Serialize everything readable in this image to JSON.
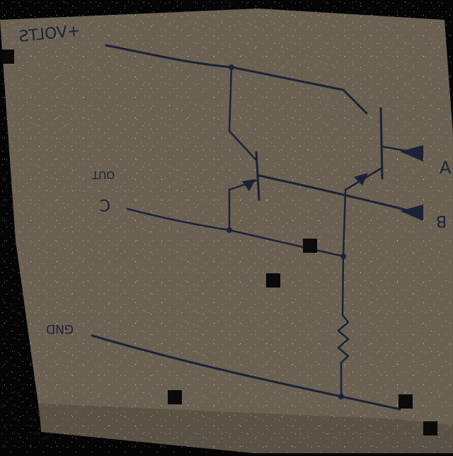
{
  "labels": {
    "supply": "+VOLTS",
    "out": "OUT",
    "c_pin": "C",
    "a_pin": "A",
    "b_pin": "B",
    "ground": "GND"
  },
  "colors": {
    "background": "#050505",
    "paper": "#6a6152",
    "paper_shadow": "#5a5244",
    "ink": "#1b2238",
    "censor": "#0a0a0a"
  }
}
